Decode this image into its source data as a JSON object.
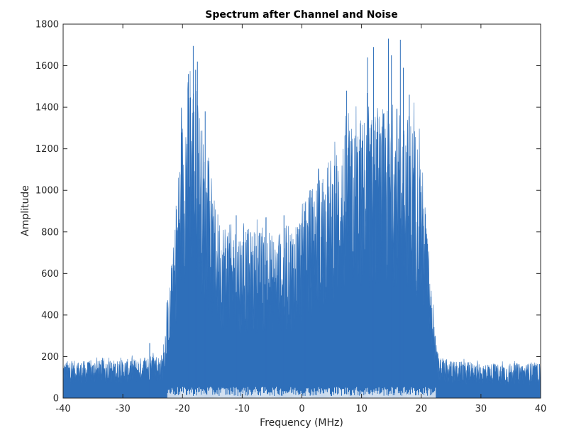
{
  "chart_data": {
    "type": "area",
    "title": "Spectrum after Channel and Noise",
    "xlabel": "Frequency (MHz)",
    "ylabel": "Amplitude",
    "xlim": [
      -40,
      40
    ],
    "ylim": [
      0,
      1800
    ],
    "xticks": [
      -40,
      -30,
      -20,
      -10,
      0,
      10,
      20,
      30,
      40
    ],
    "yticks": [
      0,
      200,
      400,
      600,
      800,
      1000,
      1200,
      1400,
      1600,
      1800
    ],
    "grid": false,
    "legend": "none",
    "series": [
      {
        "color": "#2e6fba",
        "envelope_x": [
          -40,
          -35,
          -30,
          -26,
          -25,
          -24,
          -23.3,
          -22.5,
          -22,
          -21.5,
          -21,
          -20.5,
          -20,
          -19.5,
          -19,
          -18.5,
          -18,
          -17.5,
          -17,
          -16.5,
          -16,
          -15.5,
          -15,
          -14.5,
          -14,
          -13,
          -12,
          -11,
          -10,
          -9,
          -8,
          -7,
          -6,
          -5,
          -4,
          -3,
          -2,
          -1,
          0,
          1,
          2,
          3,
          4,
          5,
          6,
          7,
          8,
          9,
          10,
          11,
          12,
          13,
          14,
          15,
          16,
          17,
          18,
          19,
          19.5,
          20,
          20.5,
          21,
          21.5,
          22,
          22.5,
          23,
          25,
          30,
          35,
          40
        ],
        "envelope_y": [
          150,
          150,
          155,
          165,
          185,
          170,
          180,
          400,
          480,
          620,
          800,
          1000,
          1150,
          1250,
          1300,
          1320,
          1300,
          1250,
          1150,
          1050,
          950,
          880,
          820,
          780,
          750,
          720,
          700,
          690,
          680,
          680,
          680,
          675,
          670,
          660,
          665,
          680,
          700,
          730,
          780,
          830,
          870,
          900,
          940,
          980,
          1020,
          1060,
          1090,
          1120,
          1130,
          1140,
          1150,
          1160,
          1170,
          1180,
          1180,
          1170,
          1150,
          1100,
          1050,
          980,
          850,
          700,
          500,
          350,
          220,
          160,
          150,
          140,
          140,
          140
        ],
        "spikes": [
          [
            -18.2,
            1695
          ],
          [
            -17.5,
            1620
          ],
          [
            -19,
            1560
          ],
          [
            -17.8,
            1580
          ],
          [
            -16.2,
            1380
          ],
          [
            -11,
            880
          ],
          [
            -6,
            870
          ],
          [
            -3,
            880
          ],
          [
            0.5,
            900
          ],
          [
            7.5,
            1480
          ],
          [
            11,
            1640
          ],
          [
            12,
            1690
          ],
          [
            14.5,
            1730
          ],
          [
            15,
            1650
          ],
          [
            16.5,
            1725
          ],
          [
            17,
            1590
          ],
          [
            18,
            1460
          ],
          [
            -25.5,
            265
          ]
        ]
      }
    ]
  }
}
